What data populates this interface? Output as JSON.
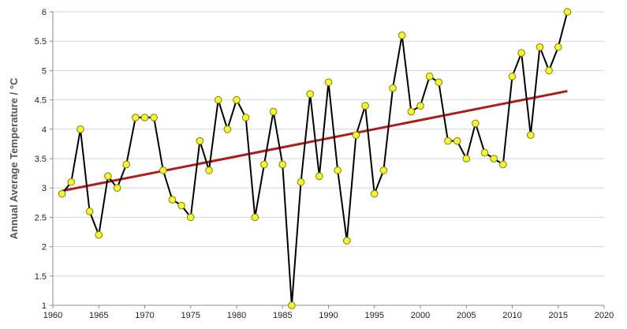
{
  "chart_data": {
    "type": "line",
    "title": "",
    "xlabel": "",
    "ylabel": "Annual Average Temperature / °C",
    "xlim": [
      1960,
      2020
    ],
    "ylim": [
      1,
      6
    ],
    "x_ticks": [
      1960,
      1965,
      1970,
      1975,
      1980,
      1985,
      1990,
      1995,
      2000,
      2005,
      2010,
      2015,
      2020
    ],
    "y_ticks": [
      1,
      1.5,
      2,
      2.5,
      3,
      3.5,
      4,
      4.5,
      5,
      5.5,
      6
    ],
    "x_tick_labels": [
      "1960",
      "1965",
      "1970",
      "1975",
      "1980",
      "1985",
      "1990",
      "1995",
      "2000",
      "2005",
      "2010",
      "2015",
      "2020"
    ],
    "y_tick_labels": [
      "1",
      "1.5",
      "2",
      "2.5",
      "3",
      "3.5",
      "4",
      "4.5",
      "5",
      "5.5",
      "6"
    ],
    "grid": "horizontal",
    "legend": "none",
    "series": [
      {
        "x": [
          1961,
          1962,
          1963,
          1964,
          1965,
          1966,
          1967,
          1968,
          1969,
          1970,
          1971,
          1972,
          1973,
          1974,
          1975,
          1976,
          1977,
          1978,
          1979,
          1980,
          1981,
          1982,
          1983,
          1984,
          1985,
          1986,
          1987,
          1988,
          1989,
          1990,
          1991,
          1992,
          1993,
          1994,
          1995,
          1996,
          1997,
          1998,
          1999,
          2000,
          2001,
          2002,
          2003,
          2004,
          2005,
          2006,
          2007,
          2008,
          2009,
          2010,
          2011,
          2012,
          2013,
          2014,
          2015,
          2016
        ],
        "values": [
          2.9,
          3.1,
          4.0,
          2.6,
          2.2,
          3.2,
          3.0,
          3.4,
          4.2,
          4.2,
          4.2,
          3.3,
          2.8,
          2.7,
          2.5,
          3.8,
          3.3,
          4.5,
          4.0,
          4.5,
          4.2,
          2.5,
          3.4,
          4.3,
          3.4,
          1.0,
          3.1,
          4.6,
          3.2,
          4.8,
          3.3,
          2.1,
          3.9,
          4.4,
          2.9,
          3.3,
          4.7,
          5.6,
          4.3,
          4.4,
          4.9,
          4.8,
          3.8,
          3.8,
          3.5,
          4.1,
          3.6,
          3.5,
          3.4,
          4.9,
          5.3,
          3.9,
          5.4,
          5.0,
          5.4,
          6.0
        ],
        "line_color": "#000000",
        "marker_fill": "#f5f533",
        "marker_edge": "#808000"
      }
    ],
    "trendline": {
      "x": [
        1961,
        2016
      ],
      "values": [
        2.95,
        4.65
      ],
      "color": "#b01c1c"
    },
    "colors": {
      "grid": "#d4d4d4",
      "axis": "#8c8c8c"
    }
  }
}
